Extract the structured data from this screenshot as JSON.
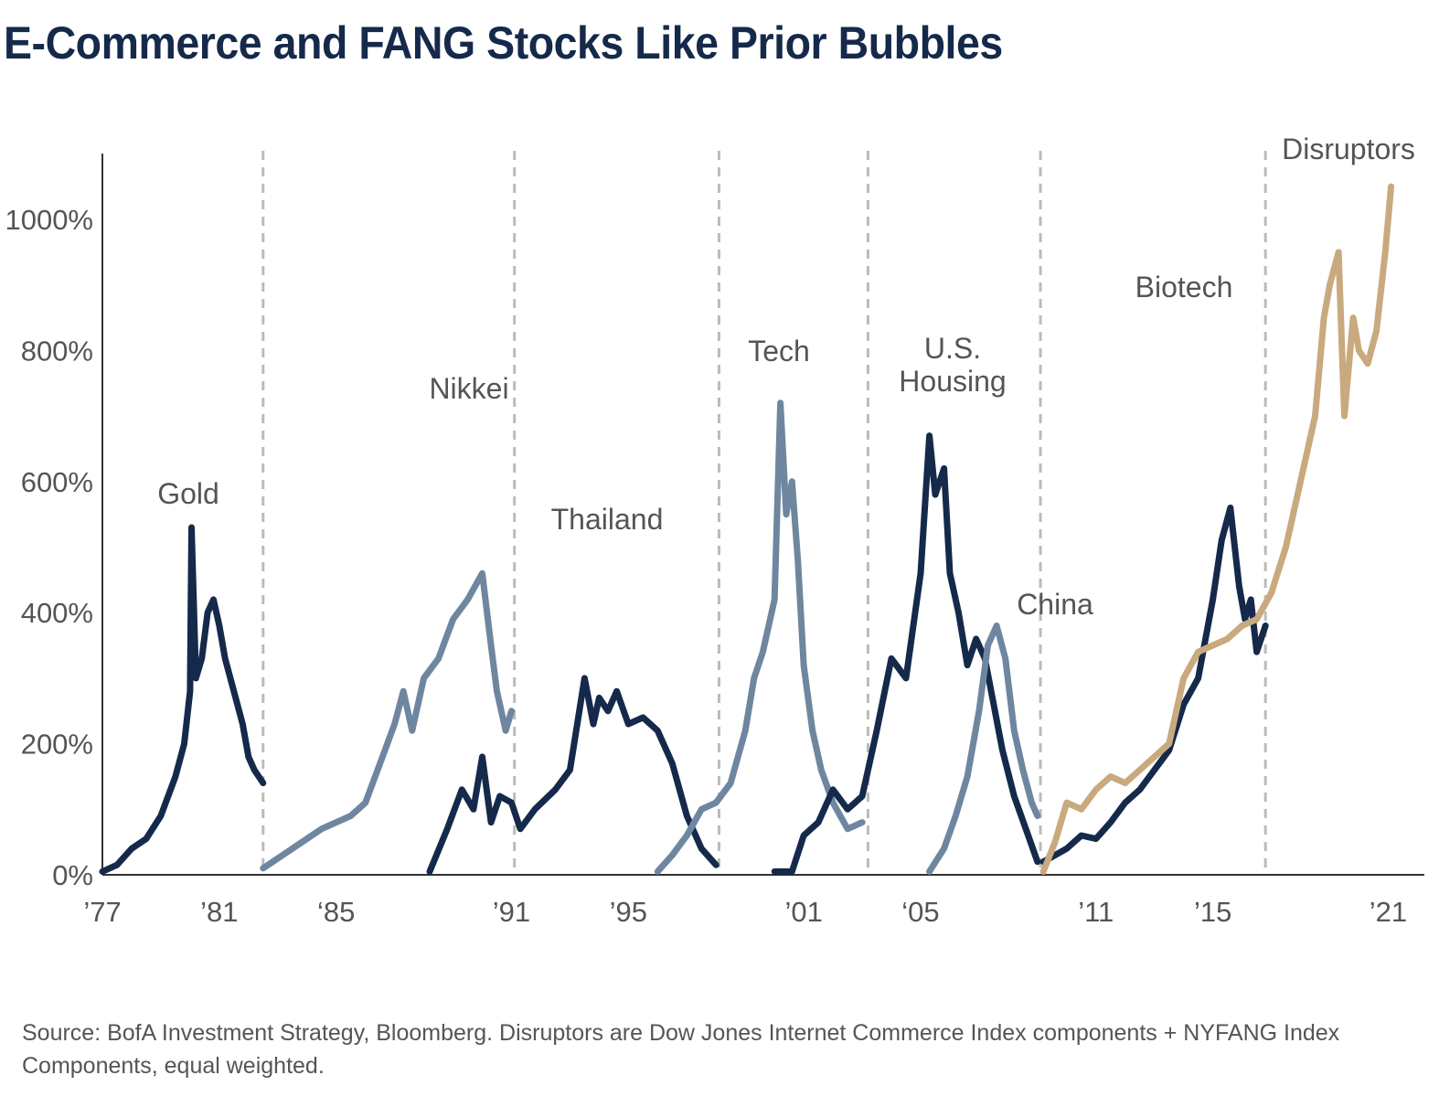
{
  "title": "E-Commerce and FANG Stocks Like Prior Bubbles",
  "source": "Source: BofA Investment Strategy, Bloomberg. Disruptors are Dow Jones Internet Commerce Index components + NYFANG Index Components, equal weighted.",
  "colors": {
    "navy": "#15294b",
    "slate": "#6f86a0",
    "tan": "#c9a97e",
    "axis": "#333333",
    "divider": "#bbbbbb",
    "label": "#555555"
  },
  "chart_data": {
    "type": "line",
    "xlabel": "",
    "ylabel": "",
    "ylim": [
      0,
      1100
    ],
    "xlim": [
      1977,
      2021.3
    ],
    "grid": false,
    "x_ticks": [
      {
        "value": 1977,
        "label": "’77"
      },
      {
        "value": 1981,
        "label": "’81"
      },
      {
        "value": 1985,
        "label": "‘85"
      },
      {
        "value": 1991,
        "label": "’91"
      },
      {
        "value": 1995,
        "label": "’95"
      },
      {
        "value": 2001,
        "label": "’01"
      },
      {
        "value": 2005,
        "label": "‘05"
      },
      {
        "value": 2011,
        "label": "’11"
      },
      {
        "value": 2015,
        "label": "’15"
      },
      {
        "value": 2021,
        "label": "’21"
      }
    ],
    "y_ticks": [
      {
        "value": 0,
        "label": "0%"
      },
      {
        "value": 200,
        "label": "200%"
      },
      {
        "value": 400,
        "label": "400%"
      },
      {
        "value": 600,
        "label": "600%"
      },
      {
        "value": 800,
        "label": "800%"
      },
      {
        "value": 1000,
        "label": "1000%"
      }
    ],
    "dividers": [
      1982.5,
      1991.1,
      1998.1,
      2003.2,
      2009.1,
      2016.8
    ],
    "series": [
      {
        "name": "Gold",
        "color": "navy",
        "x": [
          1977.0,
          1977.5,
          1978.0,
          1978.5,
          1979.0,
          1979.5,
          1979.8,
          1980.0,
          1980.05,
          1980.2,
          1980.4,
          1980.6,
          1980.8,
          1981.0,
          1981.2,
          1981.5,
          1981.8,
          1982.0,
          1982.2,
          1982.5
        ],
        "y": [
          5,
          15,
          40,
          55,
          90,
          150,
          200,
          280,
          530,
          300,
          330,
          400,
          420,
          380,
          330,
          280,
          230,
          180,
          160,
          140
        ]
      },
      {
        "name": "Nikkei",
        "color": "slate",
        "x": [
          1982.5,
          1983.5,
          1984.5,
          1985.5,
          1986.0,
          1986.5,
          1987.0,
          1987.3,
          1987.6,
          1988.0,
          1988.5,
          1989.0,
          1989.5,
          1990.0,
          1990.3,
          1990.5,
          1990.8,
          1991.0
        ],
        "y": [
          10,
          40,
          70,
          90,
          110,
          170,
          230,
          280,
          220,
          300,
          330,
          390,
          420,
          460,
          350,
          280,
          220,
          250
        ]
      },
      {
        "name": "Thailand",
        "color": "navy",
        "x": [
          1988.2,
          1988.8,
          1989.3,
          1989.7,
          1990.0,
          1990.3,
          1990.6,
          1991.0,
          1991.3,
          1991.8,
          1992.5,
          1993.0,
          1993.5,
          1993.8,
          1994.0,
          1994.3,
          1994.6,
          1995.0,
          1995.5,
          1996.0,
          1996.5,
          1997.0,
          1997.5,
          1998.0
        ],
        "y": [
          5,
          70,
          130,
          100,
          180,
          80,
          120,
          110,
          70,
          100,
          130,
          160,
          300,
          230,
          270,
          250,
          280,
          230,
          240,
          220,
          170,
          90,
          40,
          15
        ]
      },
      {
        "name": "Tech",
        "color": "slate",
        "x": [
          1996.0,
          1996.5,
          1997.0,
          1997.5,
          1998.0,
          1998.5,
          1999.0,
          1999.3,
          1999.6,
          2000.0,
          2000.2,
          2000.4,
          2000.6,
          2000.8,
          2001.0,
          2001.3,
          2001.6,
          2002.0,
          2002.5,
          2003.0
        ],
        "y": [
          5,
          30,
          60,
          100,
          110,
          140,
          220,
          300,
          340,
          420,
          720,
          550,
          600,
          480,
          320,
          220,
          160,
          110,
          70,
          80
        ]
      },
      {
        "name": "U.S. Housing",
        "color": "navy",
        "x": [
          2000.0,
          2000.6,
          2001.0,
          2001.5,
          2002.0,
          2002.5,
          2003.0,
          2003.5,
          2004.0,
          2004.5,
          2005.0,
          2005.3,
          2005.5,
          2005.8,
          2006.0,
          2006.3,
          2006.6,
          2006.9,
          2007.2,
          2007.5,
          2007.8,
          2008.2,
          2008.6,
          2009.0
        ],
        "y": [
          5,
          5,
          60,
          80,
          130,
          100,
          120,
          220,
          330,
          300,
          460,
          670,
          580,
          620,
          460,
          400,
          320,
          360,
          330,
          260,
          190,
          120,
          70,
          20
        ]
      },
      {
        "name": "China",
        "color": "slate",
        "x": [
          2005.3,
          2005.8,
          2006.2,
          2006.6,
          2007.0,
          2007.3,
          2007.6,
          2007.9,
          2008.2,
          2008.5,
          2008.8,
          2009.0
        ],
        "y": [
          5,
          40,
          90,
          150,
          250,
          350,
          380,
          330,
          220,
          160,
          110,
          90
        ]
      },
      {
        "name": "Biotech",
        "color": "navy",
        "x": [
          2009.2,
          2010.0,
          2010.5,
          2011.0,
          2011.5,
          2012.0,
          2012.5,
          2013.0,
          2013.5,
          2014.0,
          2014.5,
          2015.0,
          2015.3,
          2015.6,
          2015.9,
          2016.1,
          2016.3,
          2016.5,
          2016.8
        ],
        "y": [
          20,
          40,
          60,
          55,
          80,
          110,
          130,
          160,
          190,
          260,
          300,
          420,
          510,
          560,
          440,
          390,
          420,
          340,
          380
        ]
      },
      {
        "name": "Disruptors",
        "color": "tan",
        "x": [
          2009.2,
          2009.6,
          2010.0,
          2010.5,
          2011.0,
          2011.5,
          2012.0,
          2012.5,
          2013.0,
          2013.5,
          2014.0,
          2014.5,
          2015.0,
          2015.5,
          2016.0,
          2016.5,
          2017.0,
          2017.5,
          2018.0,
          2018.5,
          2018.8,
          2019.0,
          2019.3,
          2019.5,
          2019.8,
          2020.0,
          2020.3,
          2020.6,
          2020.9,
          2021.1
        ],
        "y": [
          5,
          50,
          110,
          100,
          130,
          150,
          140,
          160,
          180,
          200,
          300,
          340,
          350,
          360,
          380,
          390,
          430,
          500,
          600,
          700,
          850,
          900,
          950,
          700,
          850,
          800,
          780,
          830,
          950,
          1050
        ]
      }
    ],
    "annotations": [
      {
        "text": "Gold",
        "color": "label"
      },
      {
        "text": "Nikkei",
        "color": "label"
      },
      {
        "text": "Thailand",
        "color": "label"
      },
      {
        "text": "Tech",
        "color": "label"
      },
      {
        "text": "U.S.",
        "color": "label"
      },
      {
        "text": "Housing",
        "color": "label"
      },
      {
        "text": "China",
        "color": "label"
      },
      {
        "text": "Biotech",
        "color": "label"
      },
      {
        "text": "Disruptors",
        "color": "label"
      }
    ]
  }
}
